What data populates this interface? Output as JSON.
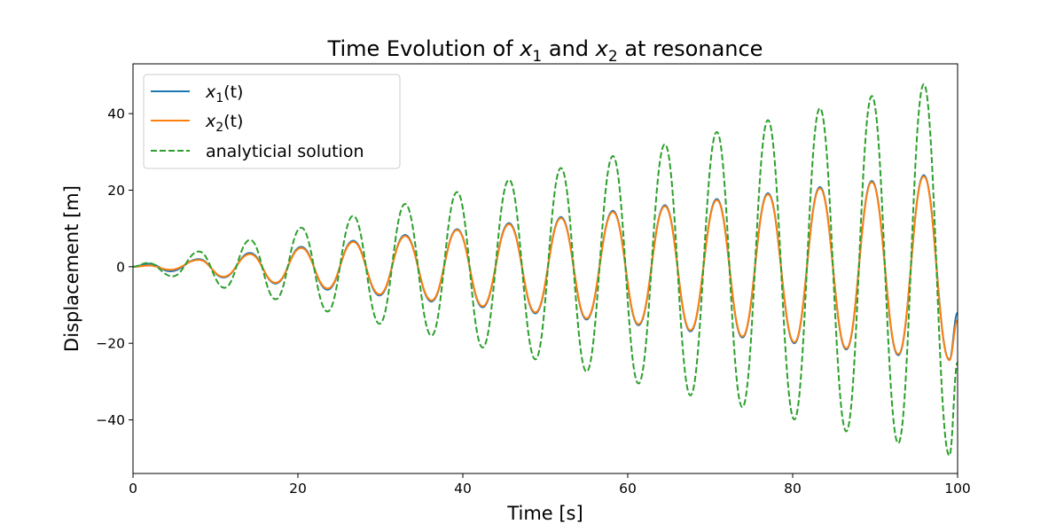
{
  "chart_data": {
    "type": "line",
    "title": "Time Evolution of x1 and x2 at resonance",
    "title_parts": {
      "prefix": "Time Evolution of ",
      "var1": "x",
      "sub1": "1",
      "middle": " and ",
      "var2": "x",
      "sub2": "2",
      "suffix": " at resonance"
    },
    "xlabel": "Time [s]",
    "ylabel": "Displacement [m]",
    "xlim": [
      0,
      100
    ],
    "ylim": [
      -54,
      53
    ],
    "xticks": [
      0,
      20,
      40,
      60,
      80,
      100
    ],
    "yticks": [
      -40,
      -20,
      0,
      20,
      40
    ],
    "xtick_labels": [
      "0",
      "20",
      "40",
      "60",
      "80",
      "100"
    ],
    "ytick_labels": [
      "−40",
      "−20",
      "0",
      "20",
      "40"
    ],
    "grid": false,
    "legend_position": "upper-left",
    "series": [
      {
        "name": "x1(t)",
        "legend": {
          "var": "x",
          "sub": "1",
          "suffix": "(t)"
        },
        "color": "#1f77b4",
        "style": "solid",
        "x": [
          0,
          2,
          4.5,
          8,
          11,
          14.2,
          17.3,
          20.4,
          23.6,
          26.7,
          29.9,
          33.0,
          36.2,
          39.3,
          42.4,
          45.6,
          48.8,
          51.9,
          55.0,
          58.2,
          61.3,
          64.5,
          67.6,
          70.8,
          73.9,
          77.0,
          80.2,
          83.3,
          86.5,
          89.6,
          92.8,
          95.9,
          99.0,
          100
        ],
        "y": [
          0,
          0.8,
          -1.2,
          2.0,
          -2.8,
          3.6,
          -4.4,
          5.2,
          -6.0,
          6.8,
          -7.5,
          8.3,
          -9.1,
          9.8,
          -10.6,
          11.4,
          -12.2,
          13.0,
          -13.8,
          14.6,
          -15.3,
          16.1,
          -16.9,
          17.7,
          -18.5,
          19.2,
          -20.0,
          20.8,
          -21.6,
          22.4,
          -23.1,
          23.9,
          -24.2,
          -12.0
        ]
      },
      {
        "name": "x2(t)",
        "legend": {
          "var": "x",
          "sub": "2",
          "suffix": "(t)"
        },
        "color": "#ff7f0e",
        "style": "solid",
        "x": [
          0,
          2,
          4.5,
          8,
          11,
          14.2,
          17.3,
          20.4,
          23.6,
          26.7,
          29.9,
          33.0,
          36.2,
          39.3,
          42.4,
          45.6,
          48.8,
          51.9,
          55.0,
          58.2,
          61.3,
          64.5,
          67.6,
          70.8,
          73.9,
          77.0,
          80.2,
          83.3,
          86.5,
          89.6,
          92.8,
          95.9,
          99.0,
          100
        ],
        "y": [
          0,
          0.3,
          -0.8,
          1.8,
          -2.6,
          3.3,
          -4.2,
          4.9,
          -5.7,
          6.5,
          -7.2,
          8.0,
          -8.8,
          9.6,
          -10.3,
          11.1,
          -11.9,
          12.7,
          -13.5,
          14.3,
          -15.0,
          15.8,
          -16.6,
          17.4,
          -18.2,
          18.9,
          -19.7,
          20.5,
          -21.3,
          22.1,
          -22.8,
          23.6,
          -24.4,
          -14.0
        ]
      },
      {
        "name": "analyticial solution",
        "legend": {
          "text": "analyticial solution"
        },
        "color": "#2ca02c",
        "style": "dashed",
        "x": [
          0,
          1.8,
          4.8,
          8.0,
          11.1,
          14.2,
          17.3,
          20.4,
          23.6,
          26.7,
          29.9,
          33.0,
          36.2,
          39.3,
          42.4,
          45.6,
          48.8,
          51.9,
          55.0,
          58.2,
          61.3,
          64.5,
          67.6,
          70.8,
          73.9,
          77.0,
          80.2,
          83.3,
          86.5,
          89.6,
          92.8,
          95.9,
          99.0,
          100
        ],
        "y": [
          0,
          1.0,
          -2.5,
          4.0,
          -5.5,
          7.0,
          -8.5,
          10.2,
          -11.7,
          13.3,
          -14.9,
          16.4,
          -18.0,
          19.5,
          -21.1,
          22.7,
          -24.2,
          25.8,
          -27.4,
          28.9,
          -30.5,
          32.0,
          -33.6,
          35.2,
          -36.7,
          38.3,
          -39.9,
          41.4,
          -43.0,
          44.6,
          -46.1,
          47.7,
          -49.3,
          -25.0
        ]
      }
    ]
  }
}
